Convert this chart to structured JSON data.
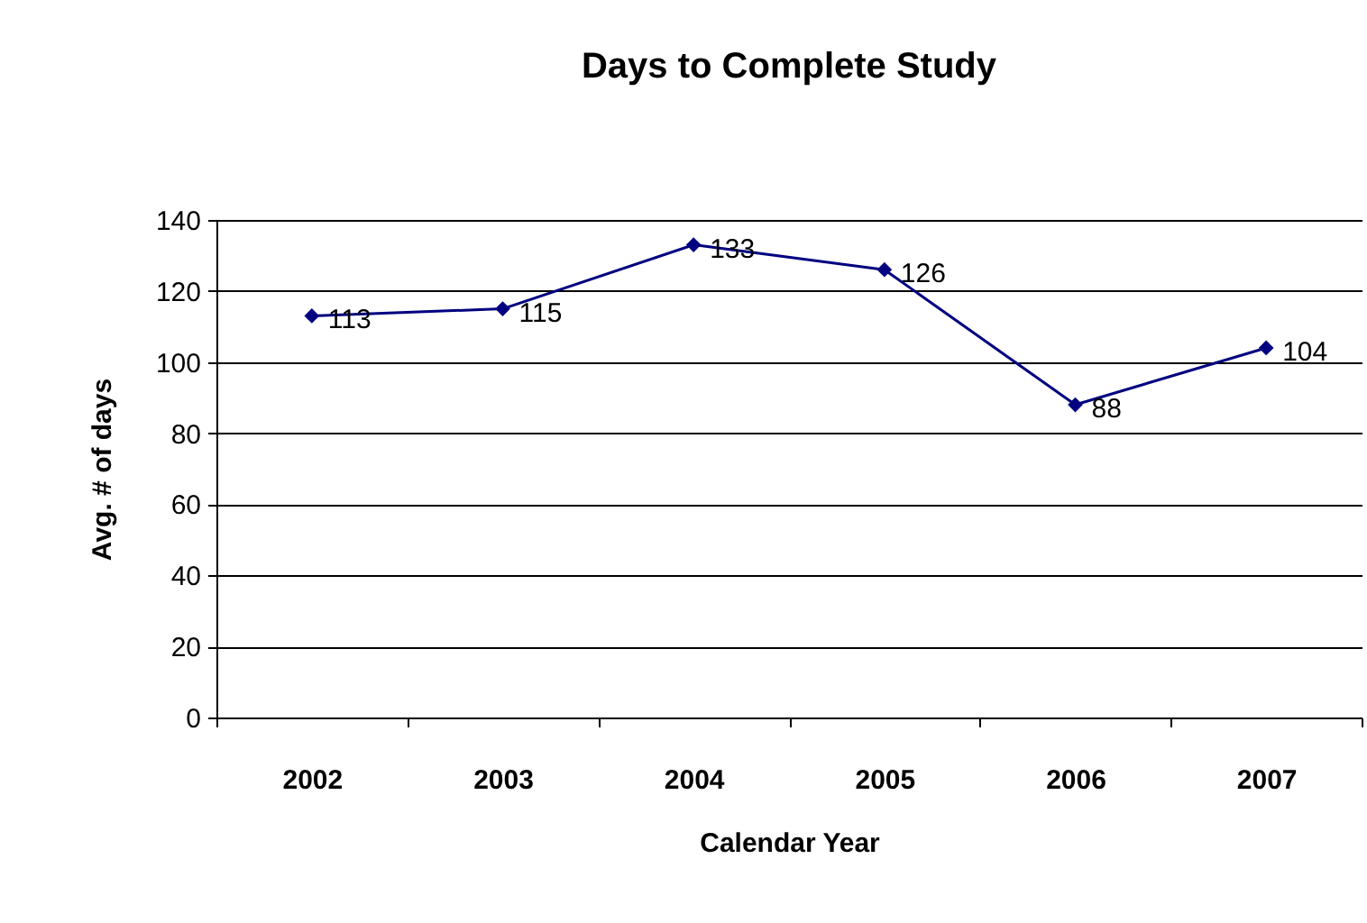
{
  "chart_data": {
    "type": "line",
    "title": "Days to Complete Study",
    "xlabel": "Calendar Year",
    "ylabel": "Avg. # of days",
    "categories": [
      "2002",
      "2003",
      "2004",
      "2005",
      "2006",
      "2007"
    ],
    "series": [
      {
        "color": "#000080",
        "values": [
          113,
          115,
          133,
          126,
          88,
          104
        ]
      }
    ],
    "ylim": [
      0,
      140
    ],
    "yticks": [
      0,
      20,
      40,
      60,
      80,
      100,
      120,
      140
    ],
    "grid": "y",
    "legend": false,
    "marker": "diamond",
    "line_style": "solid",
    "data_labels": true
  }
}
